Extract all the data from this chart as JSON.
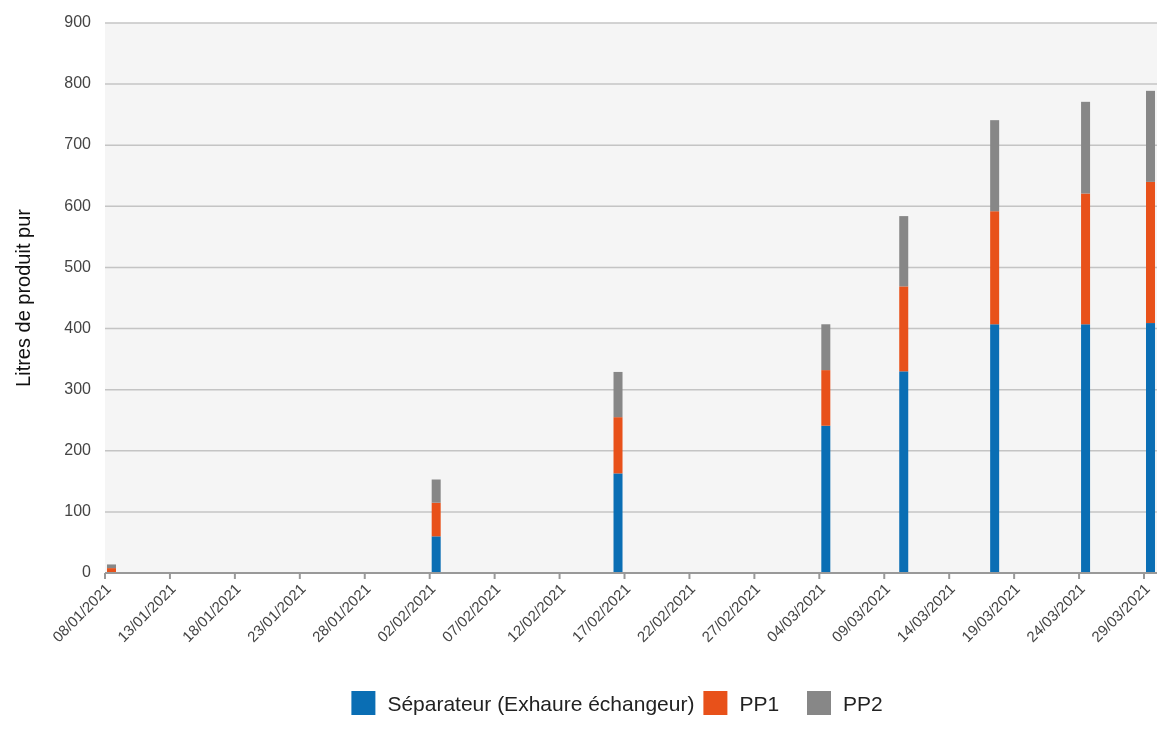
{
  "chart_data": {
    "type": "bar",
    "stacked": true,
    "ylabel": "Litres de produit pur",
    "x": [
      "2021-01-08T12:00",
      "2021-02-02T12:00",
      "2021-02-16T12:00",
      "2021-03-04T12:00",
      "2021-03-10T12:00",
      "2021-03-17T12:00",
      "2021-03-24T12:00",
      "2021-03-29T12:00"
    ],
    "series": [
      {
        "name": "Séparateur (Exhaure échangeur)",
        "color": "#0a6eb4",
        "values": [
          0,
          60,
          163,
          241,
          330,
          407,
          407,
          409
        ]
      },
      {
        "name": "PP1",
        "color": "#e8511a",
        "values": [
          8,
          55,
          92,
          91,
          139,
          185,
          214,
          231
        ]
      },
      {
        "name": "PP2",
        "color": "#878787",
        "values": [
          6,
          38,
          74,
          75,
          115,
          149,
          150,
          149
        ]
      }
    ],
    "xlim": [
      "2021-01-08",
      "2021-03-30"
    ],
    "xticks": [
      {
        "value": "2021-01-08",
        "label": "08/01/2021"
      },
      {
        "value": "2021-01-13",
        "label": "13/01/2021"
      },
      {
        "value": "2021-01-18",
        "label": "18/01/2021"
      },
      {
        "value": "2021-01-23",
        "label": "23/01/2021"
      },
      {
        "value": "2021-01-28",
        "label": "28/01/2021"
      },
      {
        "value": "2021-02-02",
        "label": "02/02/2021"
      },
      {
        "value": "2021-02-07",
        "label": "07/02/2021"
      },
      {
        "value": "2021-02-12",
        "label": "12/02/2021"
      },
      {
        "value": "2021-02-17",
        "label": "17/02/2021"
      },
      {
        "value": "2021-02-22",
        "label": "22/02/2021"
      },
      {
        "value": "2021-02-27",
        "label": "27/02/2021"
      },
      {
        "value": "2021-03-04",
        "label": "04/03/2021"
      },
      {
        "value": "2021-03-09",
        "label": "09/03/2021"
      },
      {
        "value": "2021-03-14",
        "label": "14/03/2021"
      },
      {
        "value": "2021-03-19",
        "label": "19/03/2021"
      },
      {
        "value": "2021-03-24",
        "label": "24/03/2021"
      },
      {
        "value": "2021-03-29",
        "label": "29/03/2021"
      }
    ],
    "ylim": [
      0,
      900
    ],
    "yticks": [
      0,
      100,
      200,
      300,
      400,
      500,
      600,
      700,
      800,
      900
    ],
    "grid": "y",
    "legend": "bottom"
  }
}
